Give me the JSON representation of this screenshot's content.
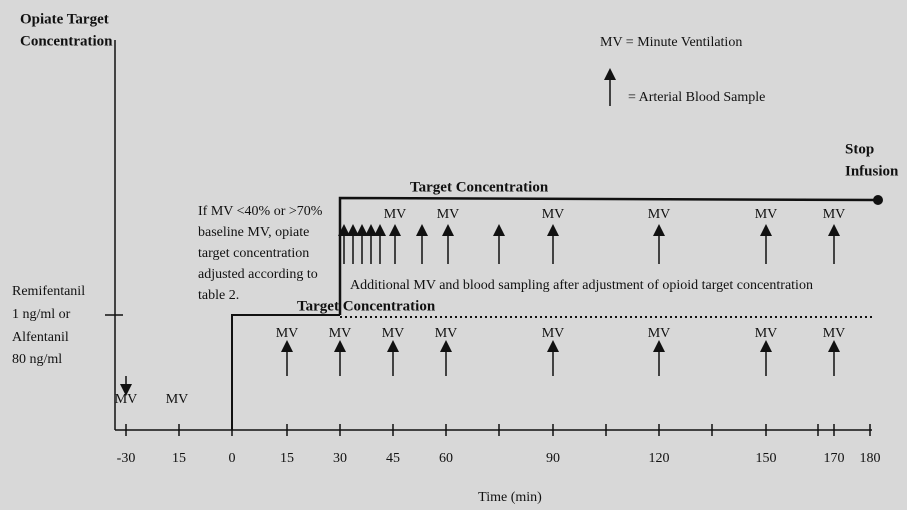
{
  "y_axis_label": [
    "Opiate Target",
    "Concentration"
  ],
  "legend": {
    "mv": "MV = Minute Ventilation",
    "arrow": "= Arterial Blood Sample"
  },
  "stop": [
    "Stop",
    "Infusion"
  ],
  "level_label": [
    "Remifentanil",
    "1 ng/ml or",
    "Alfentanil",
    "80 ng/ml"
  ],
  "upper_label": "Target Concentration",
  "lower_label": "Target Concentration",
  "note": [
    "If MV <40% or >70%",
    "baseline MV, opiate",
    "target concentration",
    "adjusted according to",
    "table 2."
  ],
  "additional": "Additional MV and blood sampling after adjustment of opioid target concentration",
  "mv": "MV",
  "x_tick_labels": [
    "-30",
    "15",
    "0",
    "15",
    "30",
    "45",
    "60",
    "90",
    "120",
    "150",
    "170",
    "180"
  ],
  "x_axis_label": "Time (min)"
}
